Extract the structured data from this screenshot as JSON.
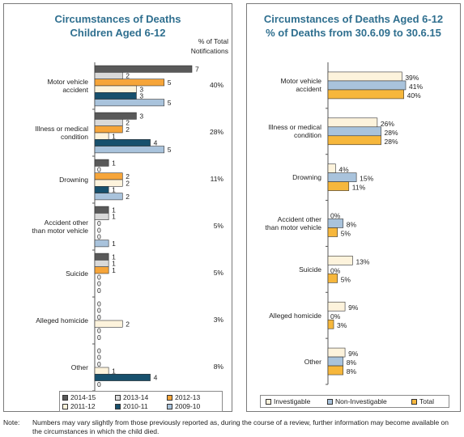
{
  "colors": {
    "2014-15": "#595959",
    "2013-14": "#d9d9d9",
    "2012-13": "#f6a53a",
    "2011-12": "#fdf3dc",
    "2010-11": "#17506d",
    "2009-10": "#a9c3dc",
    "Investigable": "#fdf3dc",
    "Non-Investigable": "#a9c3dc",
    "Total": "#f6b73c",
    "title": "#2f6f8f"
  },
  "left": {
    "title_line1": "Circumstances of Deaths",
    "title_line2": "Children Aged 6-12",
    "pct_header_line1": "% of Total",
    "pct_header_line2": "Notifications"
  },
  "right": {
    "title_line1": "Circumstances of Deaths Aged 6-12",
    "title_line2": "% of Deaths from 30.6.09 to 30.6.15"
  },
  "note": {
    "label": "Note:",
    "text": "Numbers may vary slightly from those previously reported as, during the course of a review, further information may become available on the circumstances in which the child died."
  },
  "chart_data": [
    {
      "type": "bar",
      "orientation": "horizontal",
      "title": "Circumstances of Deaths Children Aged 6-12",
      "categories": [
        "Motor vehicle accident",
        "Illness or medical condition",
        "Drowning",
        "Accident other than motor vehicle",
        "Suicide",
        "Alleged homicide",
        "Other"
      ],
      "category_lines": [
        [
          "Motor vehicle",
          "accident"
        ],
        [
          "Illness or medical",
          "condition"
        ],
        [
          "Drowning"
        ],
        [
          "Accident other",
          "than motor vehicle"
        ],
        [
          "Suicide"
        ],
        [
          "Alleged homicide"
        ],
        [
          "Other"
        ]
      ],
      "series": [
        {
          "name": "2014-15",
          "values": [
            7,
            3,
            1,
            1,
            1,
            0,
            0
          ]
        },
        {
          "name": "2013-14",
          "values": [
            2,
            2,
            0,
            1,
            1,
            0,
            0
          ]
        },
        {
          "name": "2012-13",
          "values": [
            5,
            2,
            2,
            0,
            1,
            0,
            0
          ]
        },
        {
          "name": "2011-12",
          "values": [
            3,
            1,
            2,
            0,
            0,
            2,
            1
          ]
        },
        {
          "name": "2010-11",
          "values": [
            3,
            4,
            1,
            0,
            0,
            0,
            4
          ]
        },
        {
          "name": "2009-10",
          "values": [
            5,
            5,
            2,
            1,
            0,
            0,
            0
          ]
        }
      ],
      "percent_of_total_header": "% of Total Notifications",
      "percent_of_total": [
        "40%",
        "28%",
        "11%",
        "5%",
        "5%",
        "3%",
        "8%"
      ],
      "xlim": [
        0,
        7
      ],
      "legend_position": "bottom",
      "legend_order": [
        "2014-15",
        "2013-14",
        "2012-13",
        "2011-12",
        "2010-11",
        "2009-10"
      ]
    },
    {
      "type": "bar",
      "orientation": "horizontal",
      "title": "Circumstances of Deaths Aged 6-12 % of Deaths from 30.6.09 to 30.6.15",
      "categories": [
        "Motor vehicle accident",
        "Illness or medical condition",
        "Drowning",
        "Accident other than motor vehicle",
        "Suicide",
        "Alleged homicide",
        "Other"
      ],
      "category_lines": [
        [
          "Motor vehicle",
          "accident"
        ],
        [
          "Illness or medical",
          "condition"
        ],
        [
          "Drowning"
        ],
        [
          "Accident other",
          "than motor vehicle"
        ],
        [
          "Suicide"
        ],
        [
          "Alleged homicide"
        ],
        [
          "Other"
        ]
      ],
      "series": [
        {
          "name": "Investigable",
          "values": [
            39,
            26,
            4,
            0,
            13,
            9,
            9
          ]
        },
        {
          "name": "Non-Investigable",
          "values": [
            41,
            28,
            15,
            8,
            0,
            0,
            8
          ]
        },
        {
          "name": "Total",
          "values": [
            40,
            28,
            11,
            5,
            5,
            3,
            8
          ]
        }
      ],
      "value_suffix": "%",
      "xlim": [
        0,
        41
      ],
      "legend_position": "bottom",
      "legend_order": [
        "Investigable",
        "Non-Investigable",
        "Total"
      ]
    }
  ]
}
